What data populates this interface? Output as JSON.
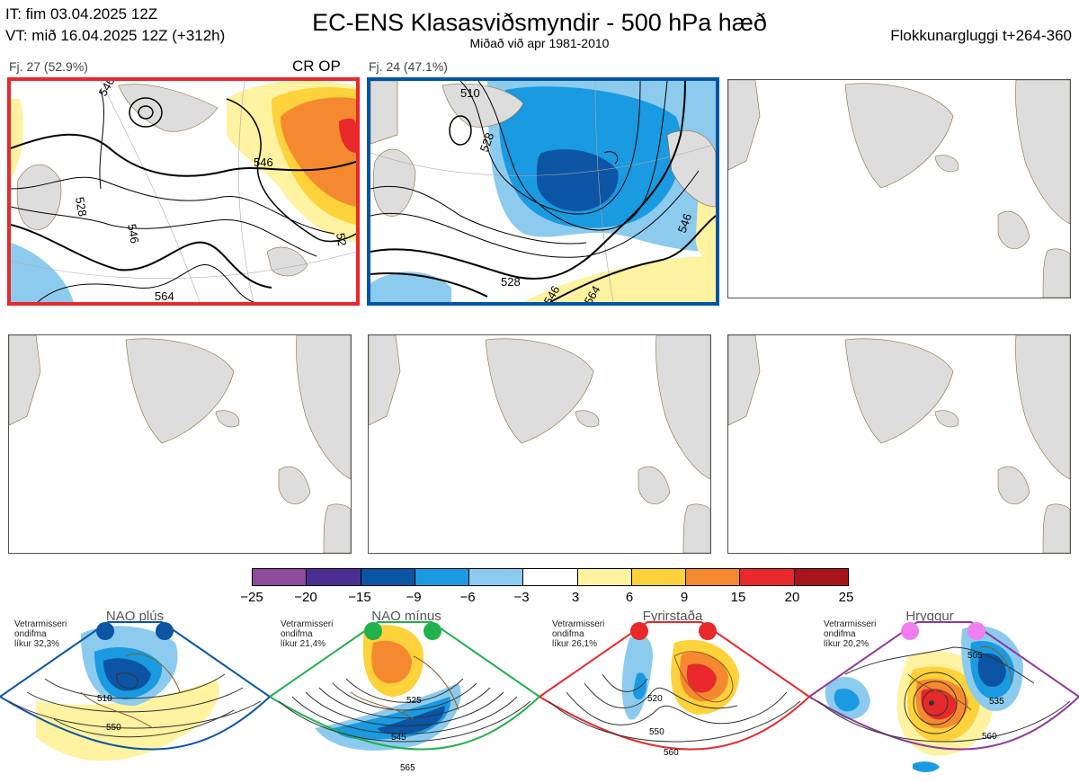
{
  "header": {
    "it_line": "IT: fim 03.04.2025 12Z",
    "vt_line": "VT: mið 16.04.2025 12Z  (+312h)",
    "title": "EC-ENS Klasasviðsmyndir - 500 hPa hæð",
    "subtitle": "Miðað við apr 1981-2010",
    "window": "Flokkunargluggi t+264-360"
  },
  "panels": [
    {
      "label": "Fj. 27 (52.9%)",
      "tags": "CR OP",
      "border": "#e8282b",
      "contour_labels": [
        "528",
        "546",
        "546",
        "564",
        "546",
        "52"
      ]
    },
    {
      "label": "Fj. 24 (47.1%)",
      "tags": "",
      "border": "#0055a4",
      "contour_labels": [
        "528",
        "546",
        "564",
        "528",
        "546",
        "510"
      ]
    }
  ],
  "colorbar": {
    "colors": [
      "#8e4a9b",
      "#4a2f92",
      "#0b55a4",
      "#1a9ae0",
      "#8ccbee",
      "#ffffff",
      "#fff2a0",
      "#fdd23a",
      "#f5892f",
      "#e8282b",
      "#a8141b"
    ],
    "ticks": [
      "−25",
      "−20",
      "−15",
      "−9",
      "−6",
      "−3",
      "3",
      "6",
      "9",
      "15",
      "20",
      "25"
    ]
  },
  "regimes": [
    {
      "name": "NAO plús",
      "note1": "Vetrarmisseri",
      "note2": "ondifma",
      "note3": "líkur 32,3%",
      "dot": "#0b55a4",
      "frame": "#0b55a4",
      "labels": [
        "510",
        "550"
      ]
    },
    {
      "name": "NAO mínus",
      "note1": "Vetrarmisseri",
      "note2": "ondifma",
      "note3": "líkur 21,4%",
      "dot": "#22b14c",
      "frame": "#22b14c",
      "labels": [
        "525",
        "545",
        "565"
      ]
    },
    {
      "name": "Fyrirstaða",
      "note1": "Vetrarmisseri",
      "note2": "ondifma",
      "note3": "líkur 26,1%",
      "dot": "#e8282b",
      "frame": "#e8282b",
      "labels": [
        "520",
        "550",
        "560"
      ]
    },
    {
      "name": "Hryggur",
      "note1": "Vetrarmisseri",
      "note2": "ondifma",
      "note3": "líkur 20,2%",
      "dot": "#f07ef0",
      "frame": "#8e3a9b",
      "labels": [
        "505",
        "535",
        "560"
      ]
    }
  ]
}
